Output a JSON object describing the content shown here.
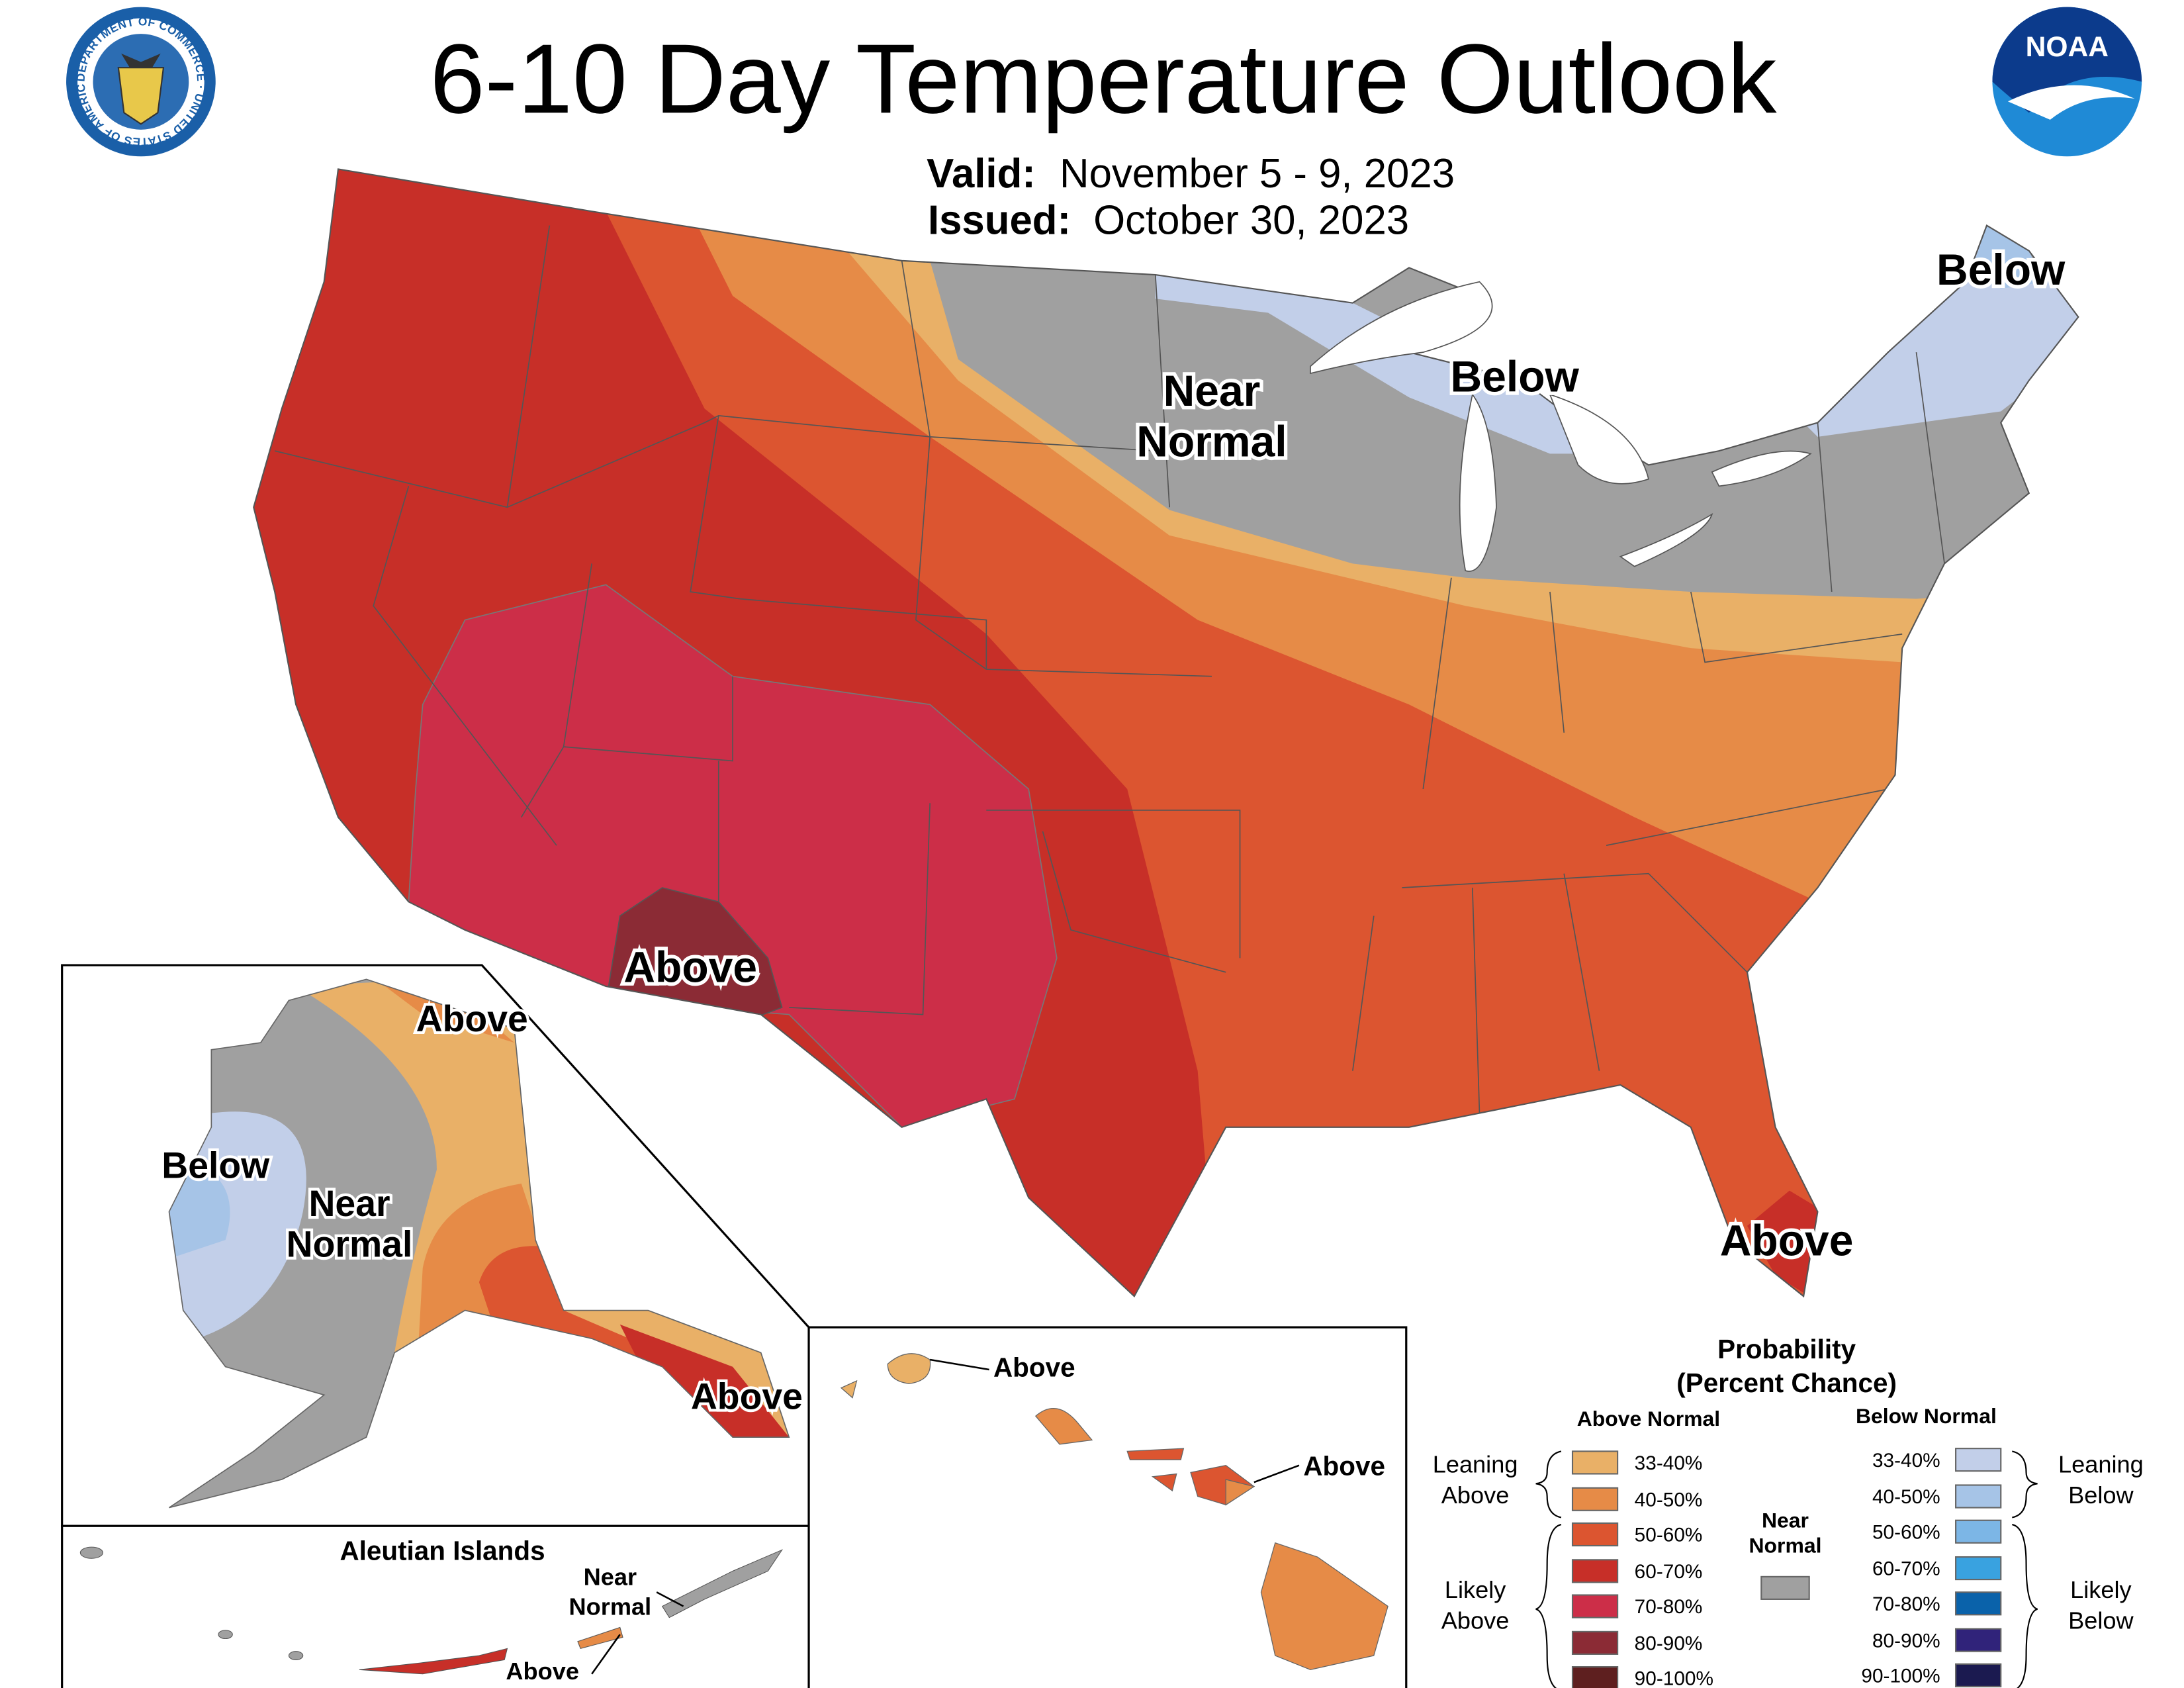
{
  "header": {
    "title": "6-10 Day Temperature Outlook",
    "valid_label": "Valid:",
    "valid_value": "November 5 - 9, 2023",
    "issued_label": "Issued:",
    "issued_value": "October 30, 2023",
    "left_logo": "Department of Commerce seal",
    "left_logo_text": "DEPARTMENT OF COMMERCE · UNITED STATES OF AMERICA",
    "right_logo": "NOAA logo",
    "right_logo_text": "NOAA"
  },
  "map_labels": {
    "conus_below_ne": "Below",
    "conus_below_gl": "Below",
    "conus_near_1": "Near",
    "conus_near_2": "Normal",
    "conus_above_sw": "Above",
    "conus_above_fl": "Above",
    "ak_above_n": "Above",
    "ak_below": "Below",
    "ak_near_1": "Near",
    "ak_near_2": "Normal",
    "ak_above_se": "Above",
    "aleutian_title": "Aleutian Islands",
    "aleutian_near_1": "Near",
    "aleutian_near_2": "Normal",
    "aleutian_above": "Above",
    "hi_above_1": "Above",
    "hi_above_2": "Above"
  },
  "legend": {
    "title_1": "Probability",
    "title_2": "(Percent Chance)",
    "above_header": "Above Normal",
    "below_header": "Below Normal",
    "near_1": "Near",
    "near_2": "Normal",
    "near_color": "#a0a0a0",
    "leaning_above_1": "Leaning",
    "leaning_above_2": "Above",
    "likely_above_1": "Likely",
    "likely_above_2": "Above",
    "leaning_below_1": "Leaning",
    "leaning_below_2": "Below",
    "likely_below_1": "Likely",
    "likely_below_2": "Below",
    "above": [
      {
        "label": "33-40%",
        "color": "#e9b067"
      },
      {
        "label": "40-50%",
        "color": "#e68b47"
      },
      {
        "label": "50-60%",
        "color": "#dc5530"
      },
      {
        "label": "60-70%",
        "color": "#c72f28"
      },
      {
        "label": "70-80%",
        "color": "#cc2e48"
      },
      {
        "label": "80-90%",
        "color": "#8b2b35"
      },
      {
        "label": "90-100%",
        "color": "#5e1f1f"
      }
    ],
    "below": [
      {
        "label": "33-40%",
        "color": "#c2cfe9"
      },
      {
        "label": "40-50%",
        "color": "#a6c4e7"
      },
      {
        "label": "50-60%",
        "color": "#7cb6e6"
      },
      {
        "label": "60-70%",
        "color": "#39a2e0"
      },
      {
        "label": "70-80%",
        "color": "#0a62aa"
      },
      {
        "label": "80-90%",
        "color": "#30237a"
      },
      {
        "label": "90-100%",
        "color": "#1b1a50"
      }
    ]
  }
}
